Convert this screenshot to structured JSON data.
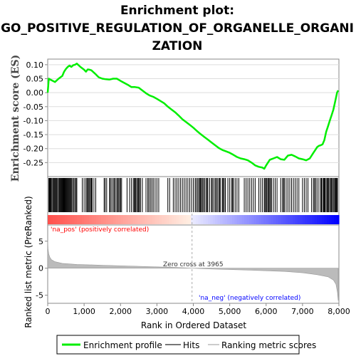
{
  "chart_data": {
    "type": "line",
    "title_lines": [
      "Enrichment plot:",
      "GO_POSITIVE_REGULATION_OF_ORGANELLE_ORGANI",
      "ZATION"
    ],
    "top_panel": {
      "ylabel": "Enrichment score (ES)",
      "ylim": [
        -0.3,
        0.12
      ],
      "yticks": [
        "0.10",
        "0.05",
        "0.00",
        "-0.05",
        "-0.10",
        "-0.15",
        "-0.20",
        "-0.25"
      ],
      "line_color": "#00ee00",
      "series": [
        {
          "name": "Enrichment profile",
          "x": [
            0,
            30,
            100,
            200,
            300,
            400,
            450,
            500,
            550,
            600,
            650,
            700,
            750,
            800,
            900,
            1000,
            1050,
            1100,
            1150,
            1200,
            1300,
            1400,
            1500,
            1600,
            1700,
            1800,
            1900,
            2000,
            2100,
            2200,
            2300,
            2400,
            2500,
            2600,
            2700,
            2800,
            2900,
            3000,
            3100,
            3200,
            3300,
            3400,
            3500,
            3600,
            3700,
            3800,
            3900,
            4000,
            4100,
            4200,
            4300,
            4400,
            4500,
            4600,
            4700,
            4800,
            4900,
            5000,
            5100,
            5200,
            5300,
            5400,
            5500,
            5600,
            5700,
            5800,
            5900,
            5950,
            6000,
            6050,
            6100,
            6200,
            6300,
            6400,
            6500,
            6600,
            6700,
            6800,
            6900,
            7000,
            7100,
            7200,
            7300,
            7350,
            7400,
            7450,
            7500,
            7550,
            7600,
            7650,
            7700,
            7750,
            7800,
            7850,
            7900,
            7950,
            7980
          ],
          "y": [
            0.0,
            0.05,
            0.045,
            0.038,
            0.05,
            0.06,
            0.075,
            0.085,
            0.092,
            0.097,
            0.092,
            0.098,
            0.1,
            0.104,
            0.092,
            0.082,
            0.075,
            0.083,
            0.082,
            0.08,
            0.068,
            0.055,
            0.05,
            0.048,
            0.047,
            0.05,
            0.05,
            0.042,
            0.035,
            0.028,
            0.02,
            0.02,
            0.018,
            0.008,
            -0.002,
            -0.01,
            -0.015,
            -0.022,
            -0.03,
            -0.038,
            -0.05,
            -0.06,
            -0.07,
            -0.082,
            -0.095,
            -0.105,
            -0.115,
            -0.125,
            -0.137,
            -0.148,
            -0.158,
            -0.168,
            -0.178,
            -0.188,
            -0.198,
            -0.205,
            -0.21,
            -0.215,
            -0.222,
            -0.23,
            -0.235,
            -0.238,
            -0.242,
            -0.25,
            -0.26,
            -0.265,
            -0.268,
            -0.272,
            -0.26,
            -0.25,
            -0.24,
            -0.235,
            -0.23,
            -0.238,
            -0.24,
            -0.225,
            -0.222,
            -0.228,
            -0.235,
            -0.238,
            -0.242,
            -0.235,
            -0.215,
            -0.205,
            -0.195,
            -0.19,
            -0.188,
            -0.185,
            -0.17,
            -0.14,
            -0.12,
            -0.1,
            -0.08,
            -0.06,
            -0.03,
            0.0,
            0.008
          ]
        }
      ]
    },
    "hits_panel": {
      "hit_positions": [
        30,
        45,
        60,
        80,
        95,
        120,
        150,
        170,
        190,
        210,
        230,
        250,
        270,
        300,
        320,
        340,
        360,
        380,
        400,
        420,
        440,
        460,
        480,
        500,
        520,
        540,
        560,
        580,
        600,
        620,
        640,
        660,
        690,
        720,
        750,
        780,
        800,
        950,
        1000,
        1050,
        1080,
        1100,
        1130,
        1150,
        1180,
        1200,
        1220,
        1270,
        1320,
        1550,
        1580,
        1620,
        1700,
        1720,
        1760,
        1800,
        1830,
        1860,
        1900,
        1920,
        1950,
        1980,
        2000,
        2030,
        2180,
        2250,
        2300,
        2350,
        2380,
        2400,
        2420,
        2450,
        2480,
        2500,
        2520,
        2550,
        2600,
        2700,
        2750,
        2780,
        2820,
        2860,
        2900,
        2950,
        3000,
        3050,
        3300,
        3350,
        3450,
        3500,
        3550,
        3600,
        3650,
        3700,
        3750,
        3800,
        3850,
        3900,
        3950,
        4000,
        4050,
        4080,
        4120,
        4150,
        4180,
        4200,
        4220,
        4250,
        4280,
        4310,
        4350,
        4380,
        4400,
        4450,
        4500,
        4520,
        4560,
        4600,
        4630,
        4660,
        4700,
        4720,
        4750,
        4800,
        4820,
        4850,
        4880,
        4950,
        5000,
        5050,
        5080,
        5100,
        5150,
        5200,
        5250,
        5400,
        5450,
        5500,
        5550,
        5600,
        5650,
        5700,
        5800,
        5850,
        5900,
        5950,
        5970,
        6000,
        6020,
        6050,
        6070,
        6100,
        6120,
        6150,
        6200,
        6250,
        6300,
        6400,
        6450,
        6480,
        6500,
        6550,
        6600,
        6650,
        6700,
        6750,
        6800,
        6850,
        6900,
        7000,
        7050,
        7100,
        7150,
        7250,
        7300,
        7330,
        7360,
        7400,
        7450,
        7500,
        7520,
        7550,
        7580,
        7600,
        7620,
        7650,
        7680,
        7700,
        7720,
        7750,
        7780,
        7800,
        7820,
        7850,
        7880,
        7900,
        7920,
        7940,
        7960
      ]
    },
    "bottom_panel": {
      "ylabel": "Ranked list metric (PreRanked)",
      "xlabel": "Rank in Ordered Dataset",
      "yticks": [
        "5",
        "0",
        "-5"
      ],
      "ylim": [
        -6.5,
        8.0
      ],
      "x_ticks": [
        "0",
        "1,000",
        "2,000",
        "3,000",
        "4,000",
        "5,000",
        "6,000",
        "7,000",
        "8,000"
      ],
      "zero_cross": 3965,
      "zero_cross_label": "Zero cross at 3965",
      "pos_label": "'na_pos' (positively correlated)",
      "neg_label": "'na_neg' (negatively correlated)",
      "pos_color": "#ff0000",
      "neg_color": "#0000ff",
      "metric_points": [
        [
          0,
          5.2
        ],
        [
          10,
          3.5
        ],
        [
          30,
          2.6
        ],
        [
          60,
          2.0
        ],
        [
          100,
          1.6
        ],
        [
          200,
          1.2
        ],
        [
          400,
          0.9
        ],
        [
          800,
          0.7
        ],
        [
          1500,
          0.55
        ],
        [
          2500,
          0.35
        ],
        [
          3500,
          0.15
        ],
        [
          3965,
          0.0
        ],
        [
          4500,
          -0.15
        ],
        [
          5500,
          -0.35
        ],
        [
          6500,
          -0.6
        ],
        [
          7000,
          -0.85
        ],
        [
          7400,
          -1.2
        ],
        [
          7700,
          -1.6
        ],
        [
          7850,
          -2.2
        ],
        [
          7920,
          -3.0
        ],
        [
          7960,
          -4.5
        ],
        [
          7980,
          -6.0
        ]
      ]
    },
    "x_max": 8000,
    "legend": [
      "Enrichment profile",
      "Hits",
      "Ranking metric scores"
    ],
    "legend_colors": [
      "#00ee00",
      "#777777",
      "#cccccc"
    ]
  }
}
